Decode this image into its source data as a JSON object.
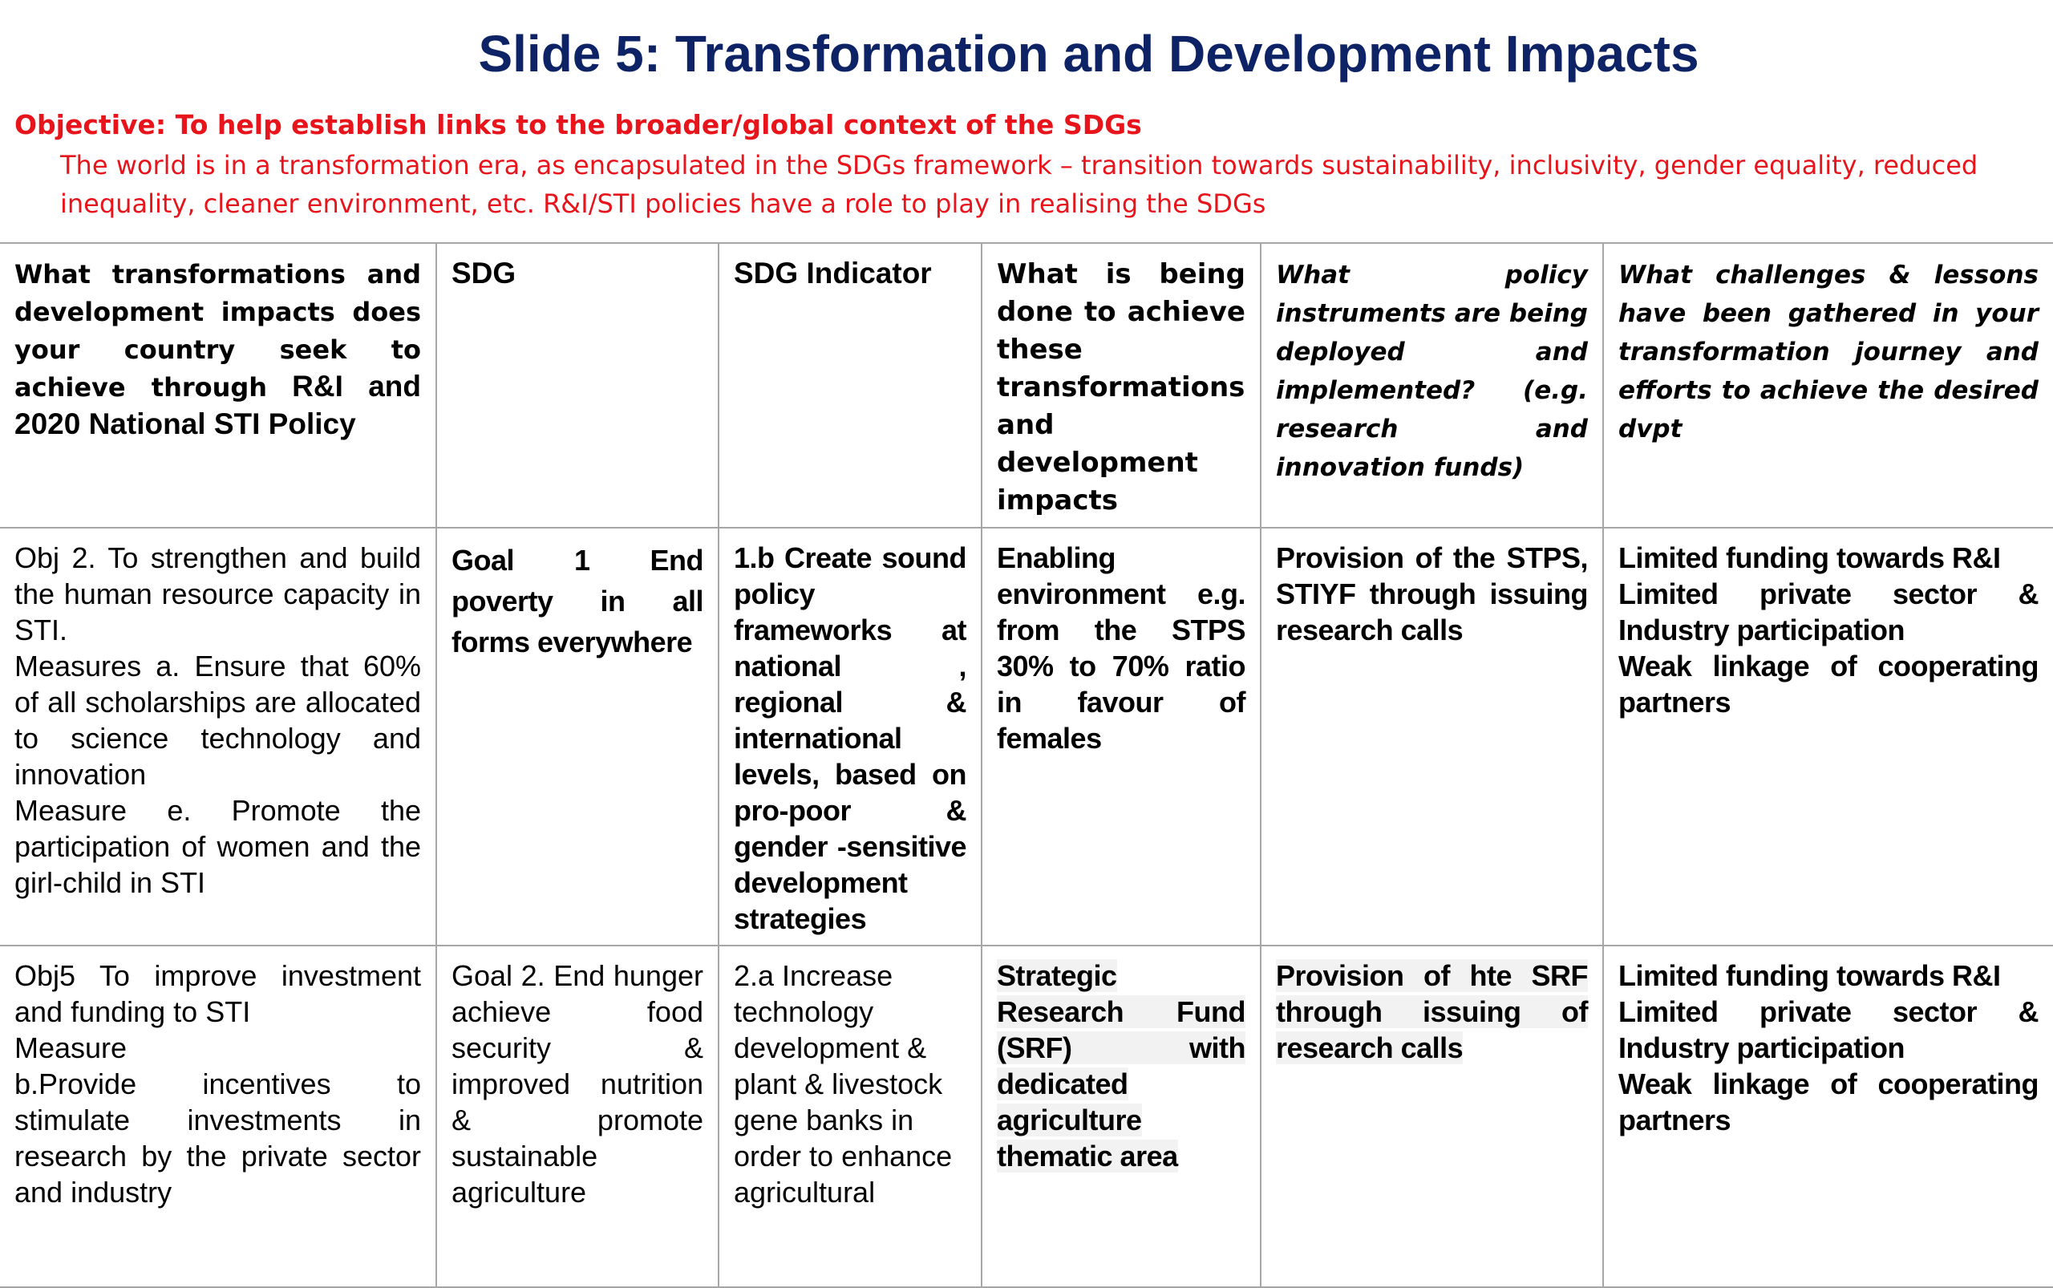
{
  "slide": {
    "title": "Slide 5: Transformation and Development Impacts",
    "objective": "Objective: To help establish links to the broader/global context of the SDGs",
    "objective_text": "The world is in a transformation era, as encapsulated in the SDGs framework – transition towards sustainability, inclusivity, gender equality, reduced inequality, cleaner environment, etc. R&I/STI policies have a role to play in realising the SDGs"
  },
  "table": {
    "headers": {
      "col1_part1": "What transformations and development impacts does your country seek to achieve through",
      "col1_part2": "R&I and 2020 National STI Policy",
      "col2": "SDG",
      "col3": "SDG Indicator",
      "col4": "What is being done to achieve these transformations and development impacts",
      "col5": "What policy instruments are being deployed and implemented? (e.g. research and innovation funds)",
      "col6": "What challenges & lessons have been gathered in your transformation journey and efforts to achieve the desired dvpt"
    },
    "rows": [
      {
        "objective_lines": [
          "Obj 2. To strengthen and build the human resource capacity in STI.",
          "Measures a. Ensure that 60% of all scholarships are allocated to science technology and innovation",
          "Measure e. Promote the participation of women and the girl-child in STI"
        ],
        "sdg": "Goal 1 End poverty in all forms everywhere",
        "indicator": "1.b Create sound policy frameworks at national , regional & international levels, based on pro-poor & gender -sensitive development strategies",
        "action": "Enabling environment e.g. from the STPS 30% to 70% ratio in favour of females",
        "instruments": "Provision of the STPS, STIYF through issuing research calls",
        "challenges": [
          "Limited funding towards R&I",
          "Limited private sector & Industry participation",
          "Weak linkage of cooperating partners"
        ]
      },
      {
        "objective_lines": [
          "Obj5 To improve investment and funding to STI",
          "Measure",
          "b.Provide incentives to stimulate investments in research by the private sector and industry"
        ],
        "sdg": "Goal 2. End hunger achieve food security & improved nutrition & promote sustainable agriculture",
        "indicator": "2.a Increase technology development & plant & livestock gene banks in order to enhance agricultural",
        "action": "Strategic Research Fund (SRF) with dedicated agriculture thematic area",
        "instruments": "Provision of hte SRF through issuing of research calls",
        "challenges": [
          "Limited funding towards R&I",
          "Limited private sector & Industry participation",
          "Weak linkage of cooperating partners"
        ]
      }
    ]
  }
}
